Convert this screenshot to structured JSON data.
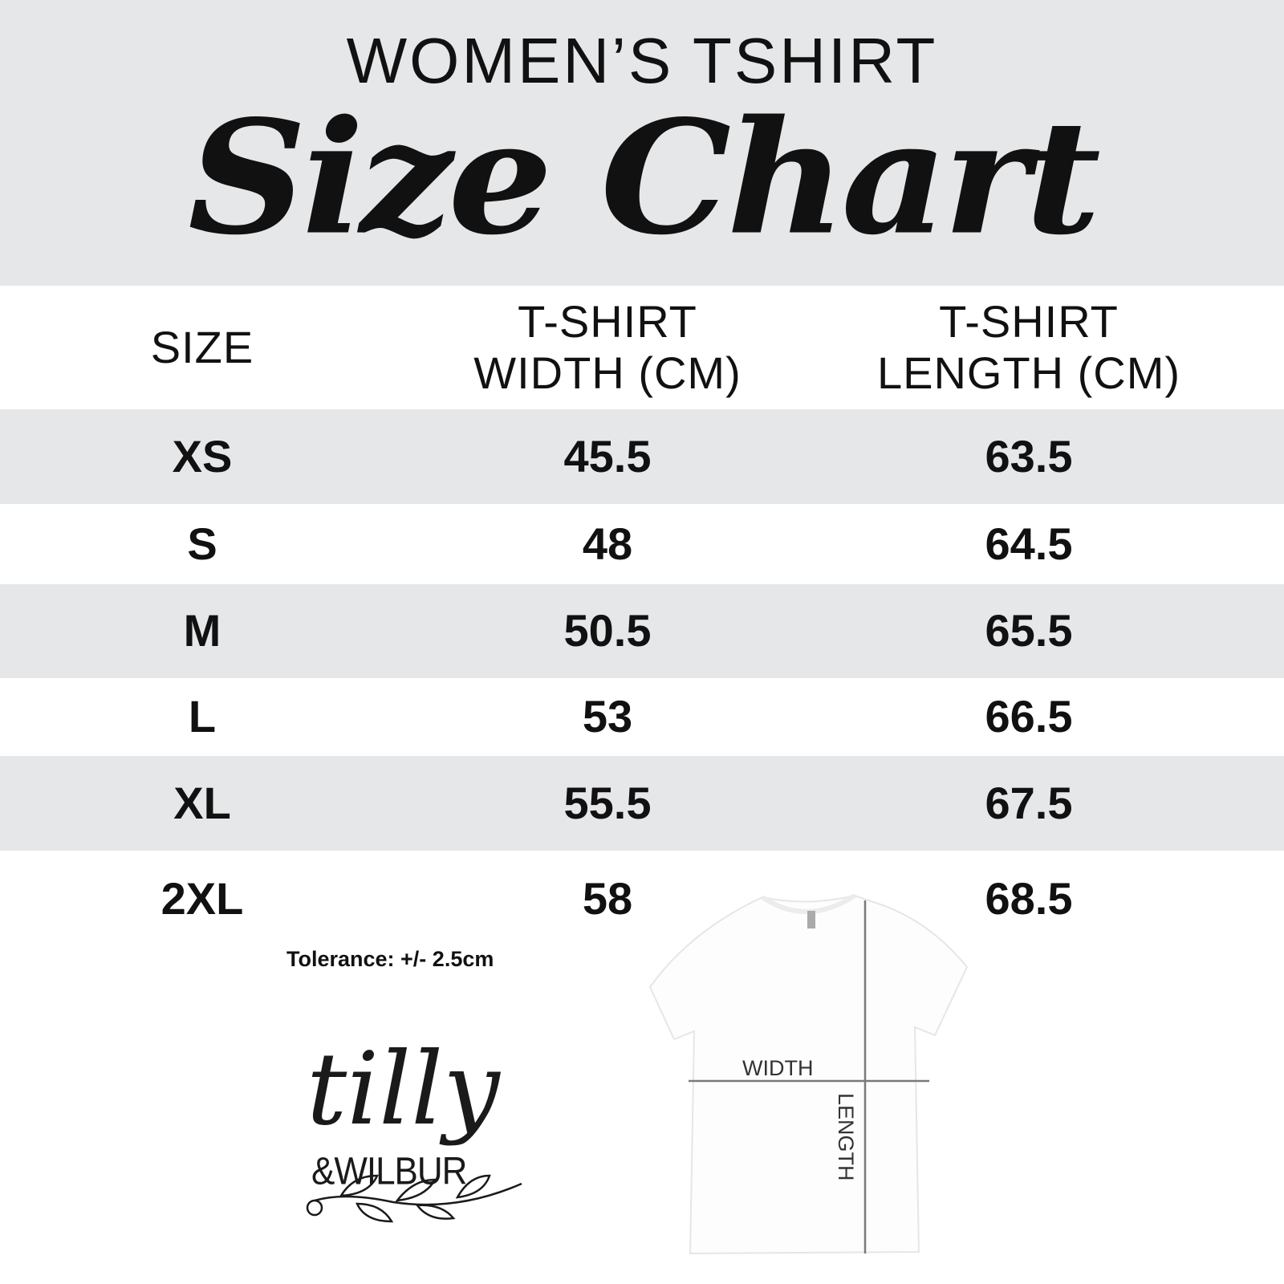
{
  "header": {
    "subtitle": "WOMEN’S TSHIRT",
    "title": "Size Chart"
  },
  "table": {
    "columns": [
      "SIZE",
      "T-SHIRT\nWIDTH (CM)",
      "T-SHIRT\nLENGTH (CM)"
    ],
    "rows": [
      [
        "XS",
        "45.5",
        "63.5"
      ],
      [
        "S",
        "48",
        "64.5"
      ],
      [
        "M",
        "50.5",
        "65.5"
      ],
      [
        "L",
        "53",
        "66.5"
      ],
      [
        "XL",
        "55.5",
        "67.5"
      ],
      [
        "2XL",
        "58",
        "68.5"
      ]
    ]
  },
  "tolerance": "Tolerance: +/- 2.5cm",
  "diagram": {
    "width_label": "WIDTH",
    "length_label": "LENGTH"
  },
  "logo": {
    "line1": "tilly",
    "line2": "&WILBUR"
  },
  "colors": {
    "band_gray": "#e6e7e9",
    "text": "#111111",
    "measure_line": "#7a7a7a"
  }
}
